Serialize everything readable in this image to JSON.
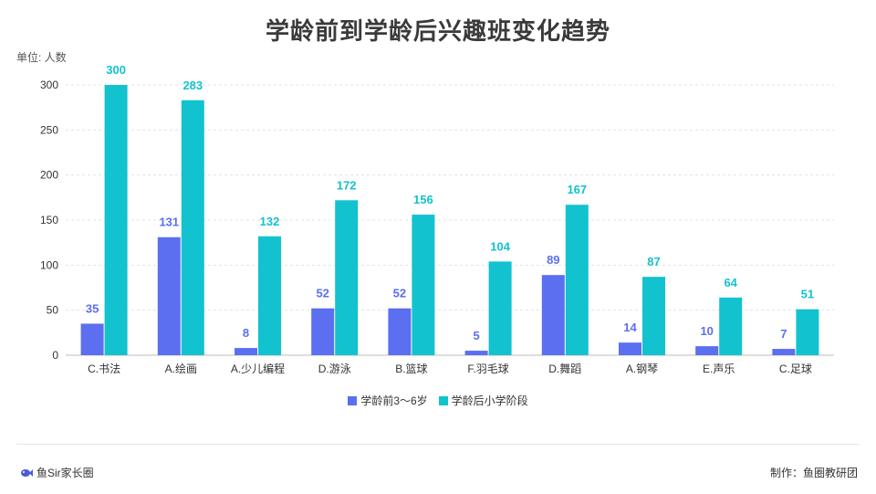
{
  "page": {
    "unit_label": "单位: 人数",
    "brand": "鱼Sir家长圈",
    "credit": "制作：鱼圈教研团",
    "brand_icon": "fish-logo-icon"
  },
  "chart_data": {
    "type": "bar",
    "title": "学龄前到学龄后兴趣班变化趋势",
    "xlabel": "",
    "ylabel": "",
    "categories": [
      "C.书法",
      "A.绘画",
      "A.少儿编程",
      "D.游泳",
      "B.篮球",
      "F.羽毛球",
      "D.舞蹈",
      "A.钢琴",
      "E.声乐",
      "C.足球"
    ],
    "series": [
      {
        "name": "学龄前3～6岁",
        "color": "#5b6ff0",
        "values": [
          35,
          131,
          8,
          52,
          52,
          5,
          89,
          14,
          10,
          7
        ]
      },
      {
        "name": "学龄后小学阶段",
        "color": "#12c2cf",
        "values": [
          300,
          283,
          132,
          172,
          156,
          104,
          167,
          87,
          64,
          51
        ]
      }
    ],
    "ylim": [
      0,
      300
    ],
    "yticks": [
      0,
      50,
      100,
      150,
      200,
      250,
      300
    ],
    "grid": true,
    "legend_position": "bottom"
  }
}
